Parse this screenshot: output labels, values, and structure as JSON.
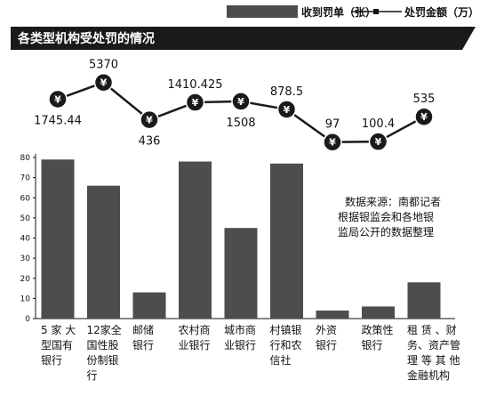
{
  "chart_data": {
    "type": "bar+line",
    "title": "各类型机构受处罚的情况",
    "legend": {
      "bar_label": "收到罚单（张）",
      "line_label": "处罚金额（万）",
      "placement": "top-right"
    },
    "categories": [
      [
        "5 家 大",
        "型国有",
        "银行"
      ],
      [
        "12家全",
        "国性股",
        "份制银",
        "行"
      ],
      [
        "邮储",
        "银行"
      ],
      [
        "农村商",
        "业银行"
      ],
      [
        "城市商",
        "业银行"
      ],
      [
        "村镇银",
        "行和农",
        "信社"
      ],
      [
        "外资",
        "银行"
      ],
      [
        "政策性",
        "银行"
      ],
      [
        "租 赁 、财",
        "务、资产管",
        "理 等 其 他",
        "金融机构"
      ]
    ],
    "series": [
      {
        "name": "收到罚单（张）",
        "kind": "bar",
        "values": [
          79,
          66,
          13,
          78,
          45,
          77,
          4,
          6,
          18
        ]
      },
      {
        "name": "处罚金额（万）",
        "kind": "line",
        "values": [
          1745.44,
          5370,
          436,
          1410.425,
          1508,
          878.5,
          97,
          100.4,
          535
        ]
      }
    ],
    "line_labels": [
      "1745.44",
      "5370",
      "436",
      "1410.425",
      "1508",
      "878.5",
      "97",
      "100.4",
      "535"
    ],
    "yaxis": {
      "ylim": [
        0,
        80
      ],
      "ticks": [
        "0",
        "10",
        "20",
        "30",
        "40",
        "50",
        "60",
        "70",
        "80"
      ]
    },
    "coin_symbol": "¥",
    "source_note": [
      "数据来源：南都记者",
      "根据银监会和各地银",
      "监局公开的数据整理"
    ],
    "grid": false,
    "colors": {
      "bar": "#4d4d4d",
      "line": "#1a1a1a",
      "coin": "#1a1a1a",
      "title_bg": "#1a1a1a"
    }
  }
}
